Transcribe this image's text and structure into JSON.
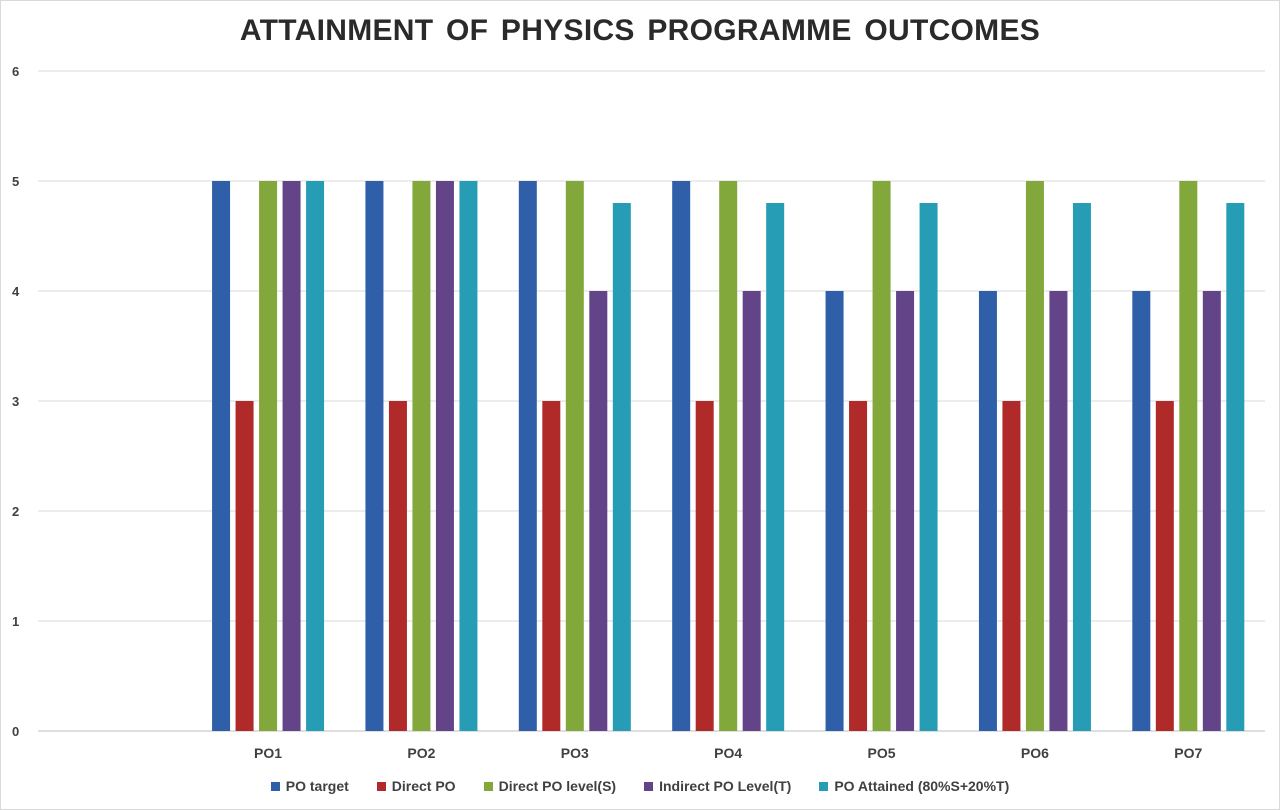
{
  "chart_data": {
    "type": "bar",
    "title": "ATTAINMENT  OF PHYSICS PROGRAMME OUTCOMES",
    "xlabel": "",
    "ylabel": "",
    "ylim": [
      0,
      6
    ],
    "yticks": [
      0,
      1,
      2,
      3,
      4,
      5,
      6
    ],
    "grid": true,
    "legend_position": "bottom",
    "categories": [
      "",
      "PO1",
      "PO2",
      "PO3",
      "PO4",
      "PO5",
      "PO6",
      "PO7"
    ],
    "series": [
      {
        "name": "PO target",
        "color": "#2e5fa8",
        "values": [
          null,
          5,
          5,
          5,
          5,
          4,
          4,
          4
        ]
      },
      {
        "name": "Direct PO",
        "color": "#b02a2a",
        "values": [
          null,
          3,
          3,
          3,
          3,
          3,
          3,
          3
        ]
      },
      {
        "name": "Direct PO level(S)",
        "color": "#82a83c",
        "values": [
          null,
          5,
          5,
          5,
          5,
          5,
          5,
          5
        ]
      },
      {
        "name": "Indirect PO Level(T)",
        "color": "#634489",
        "values": [
          null,
          5,
          5,
          4,
          4,
          4,
          4,
          4
        ]
      },
      {
        "name": "PO Attained (80%S+20%T)",
        "color": "#279cb5",
        "values": [
          null,
          5,
          5,
          4.8,
          4.8,
          4.8,
          4.8,
          4.8
        ]
      }
    ]
  }
}
